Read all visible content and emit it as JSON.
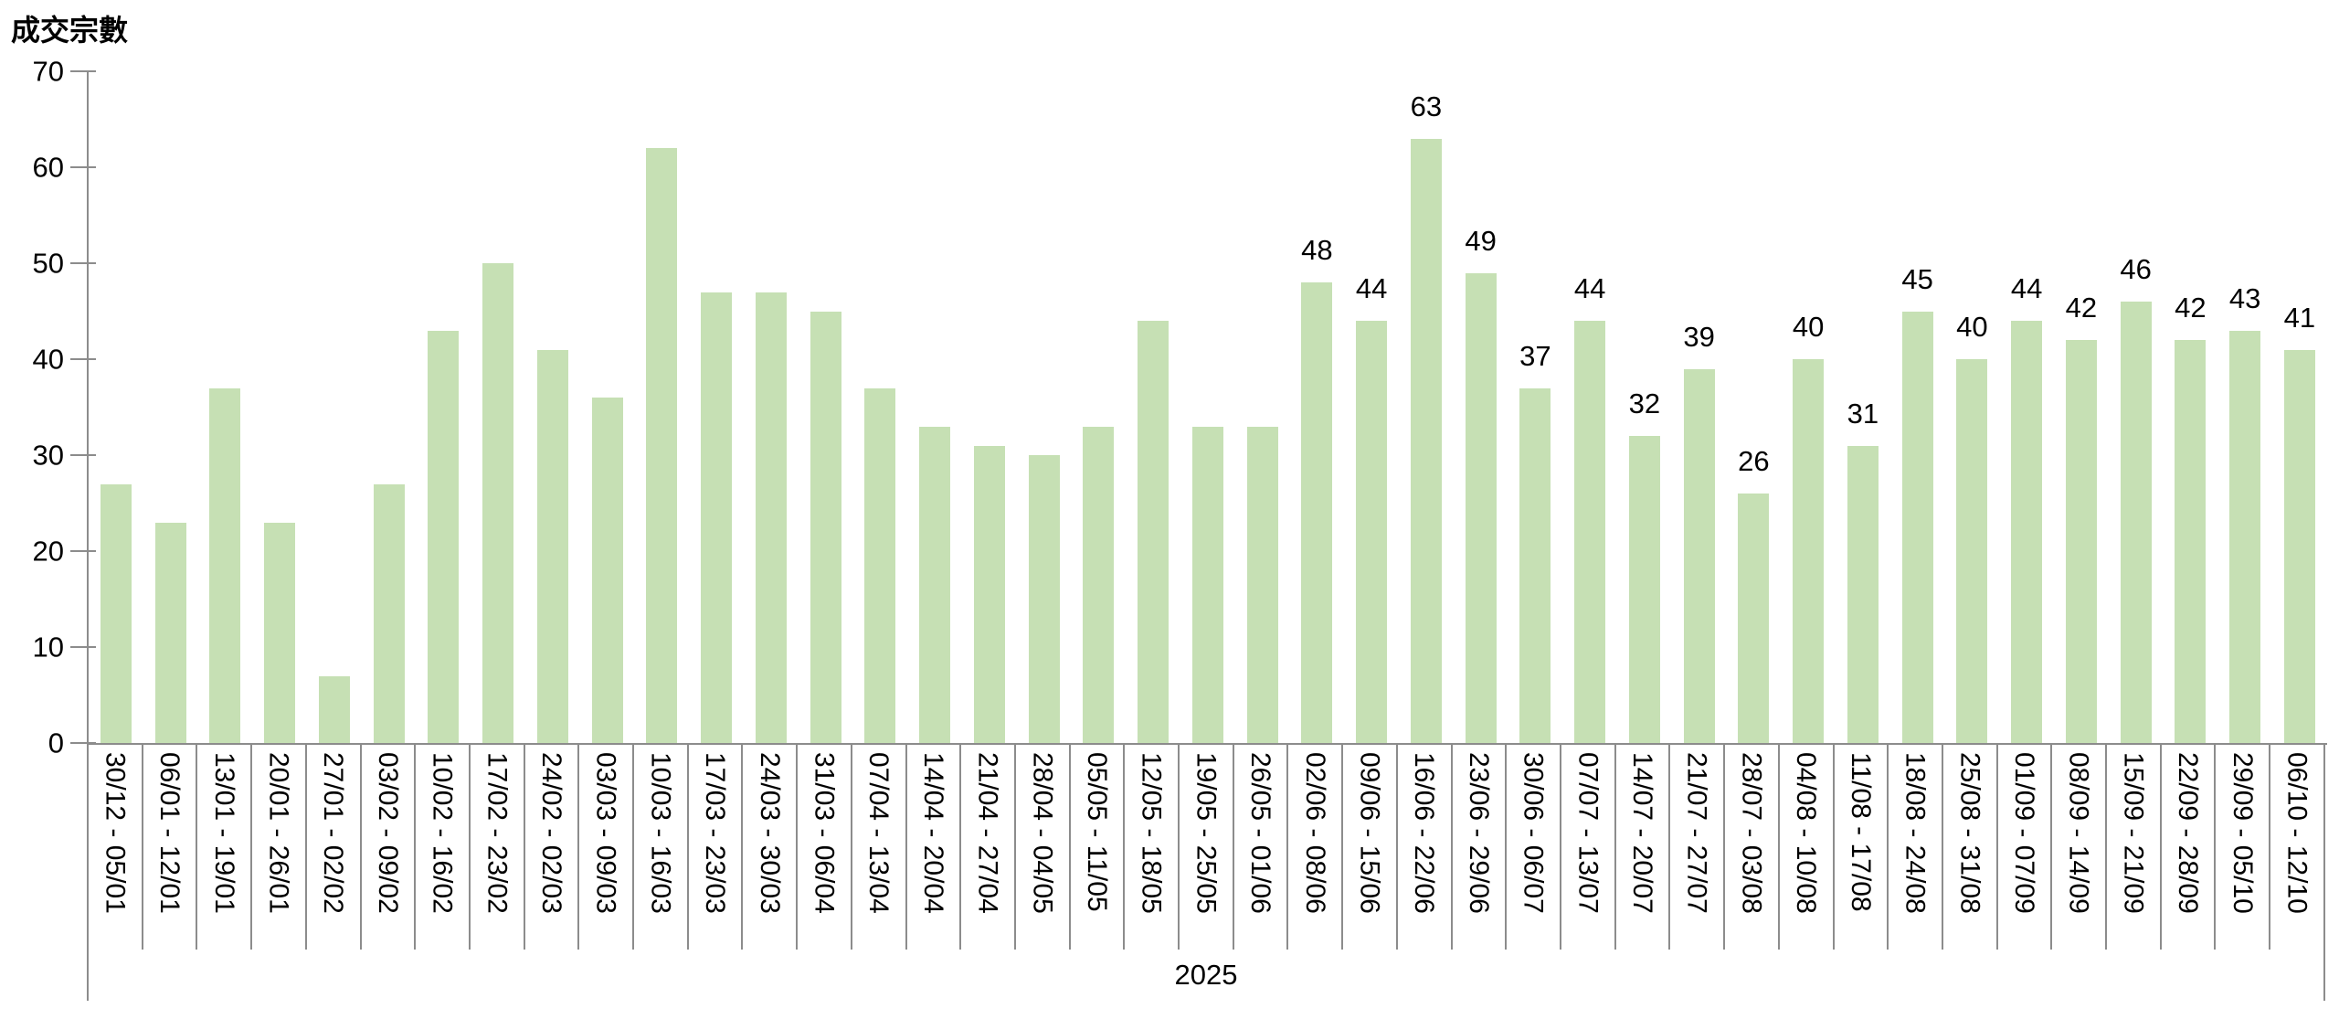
{
  "chart_data": {
    "type": "bar",
    "title": "成交宗數",
    "ylabel": "成交宗數",
    "xlabel": "2025",
    "year_label": "2025",
    "ylim": [
      0,
      70
    ],
    "yticks": [
      0,
      10,
      20,
      30,
      40,
      50,
      60,
      70
    ],
    "grid": false,
    "legend_position": "none",
    "bar_color": "#c6e0b4",
    "axis_color": "#8c8c8c",
    "text_color": "#000000",
    "categories": [
      "30/12 - 05/01",
      "06/01 - 12/01",
      "13/01 - 19/01",
      "20/01 - 26/01",
      "27/01 - 02/02",
      "03/02 - 09/02",
      "10/02 - 16/02",
      "17/02 - 23/02",
      "24/02 - 02/03",
      "03/03 - 09/03",
      "10/03 - 16/03",
      "17/03 - 23/03",
      "24/03 - 30/03",
      "31/03 - 06/04",
      "07/04 - 13/04",
      "14/04 - 20/04",
      "21/04 - 27/04",
      "28/04 - 04/05",
      "05/05 - 11/05",
      "12/05 - 18/05",
      "19/05 - 25/05",
      "26/05 - 01/06",
      "02/06 - 08/06",
      "09/06 - 15/06",
      "16/06 - 22/06",
      "23/06 - 29/06",
      "30/06 - 06/07",
      "07/07 - 13/07",
      "14/07 - 20/07",
      "21/07 - 27/07",
      "28/07 - 03/08",
      "04/08 - 10/08",
      "11/08 - 17/08",
      "18/08 - 24/08",
      "25/08 - 31/08",
      "01/09 - 07/09",
      "08/09 - 14/09",
      "15/09 - 21/09",
      "22/09 - 28/09",
      "29/09 - 05/10",
      "06/10 - 12/10"
    ],
    "values": [
      27,
      23,
      37,
      23,
      7,
      27,
      43,
      50,
      41,
      36,
      62,
      47,
      47,
      45,
      37,
      33,
      31,
      30,
      33,
      44,
      33,
      33,
      48,
      44,
      63,
      49,
      37,
      44,
      32,
      39,
      26,
      40,
      31,
      45,
      40,
      44,
      42,
      46,
      42,
      43,
      41
    ],
    "data_labels": [
      null,
      null,
      null,
      null,
      null,
      null,
      null,
      null,
      null,
      null,
      null,
      null,
      null,
      null,
      null,
      null,
      null,
      null,
      null,
      null,
      null,
      null,
      "48",
      "44",
      "63",
      "49",
      "37",
      "44",
      "32",
      "39",
      "26",
      "40",
      "31",
      "45",
      "40",
      "44",
      "42",
      "46",
      "42",
      "43",
      "41"
    ]
  }
}
